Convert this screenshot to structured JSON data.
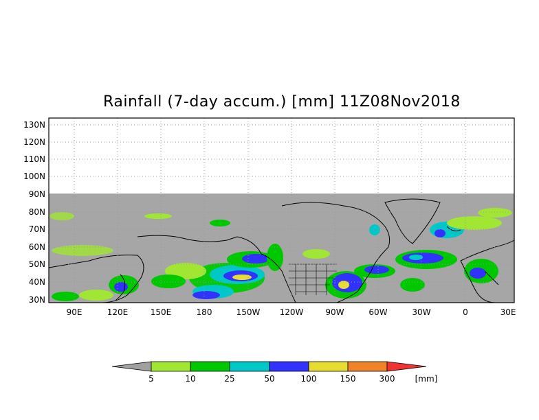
{
  "title": "Rainfall (7-day accum.) [mm] 11Z08Nov2018",
  "lat_ticks": [
    "130N",
    "120N",
    "110N",
    "100N",
    "90N",
    "80N",
    "70N",
    "60N",
    "50N",
    "40N",
    "30N"
  ],
  "lon_ticks": [
    "90E",
    "120E",
    "150E",
    "180",
    "150W",
    "120W",
    "90W",
    "60W",
    "30W",
    "0",
    "30E"
  ],
  "colorbar": {
    "labels": [
      "5",
      "10",
      "25",
      "50",
      "100",
      "150",
      "300"
    ],
    "unit": "[mm]",
    "colors": [
      "#a0a0a0",
      "#a0e632",
      "#00c800",
      "#00c8c8",
      "#3232ff",
      "#e6dc32",
      "#f08228",
      "#f03232"
    ]
  },
  "colors": {
    "missing": "#a6a6a6",
    "coast": "#000000",
    "grid": "#999999"
  }
}
